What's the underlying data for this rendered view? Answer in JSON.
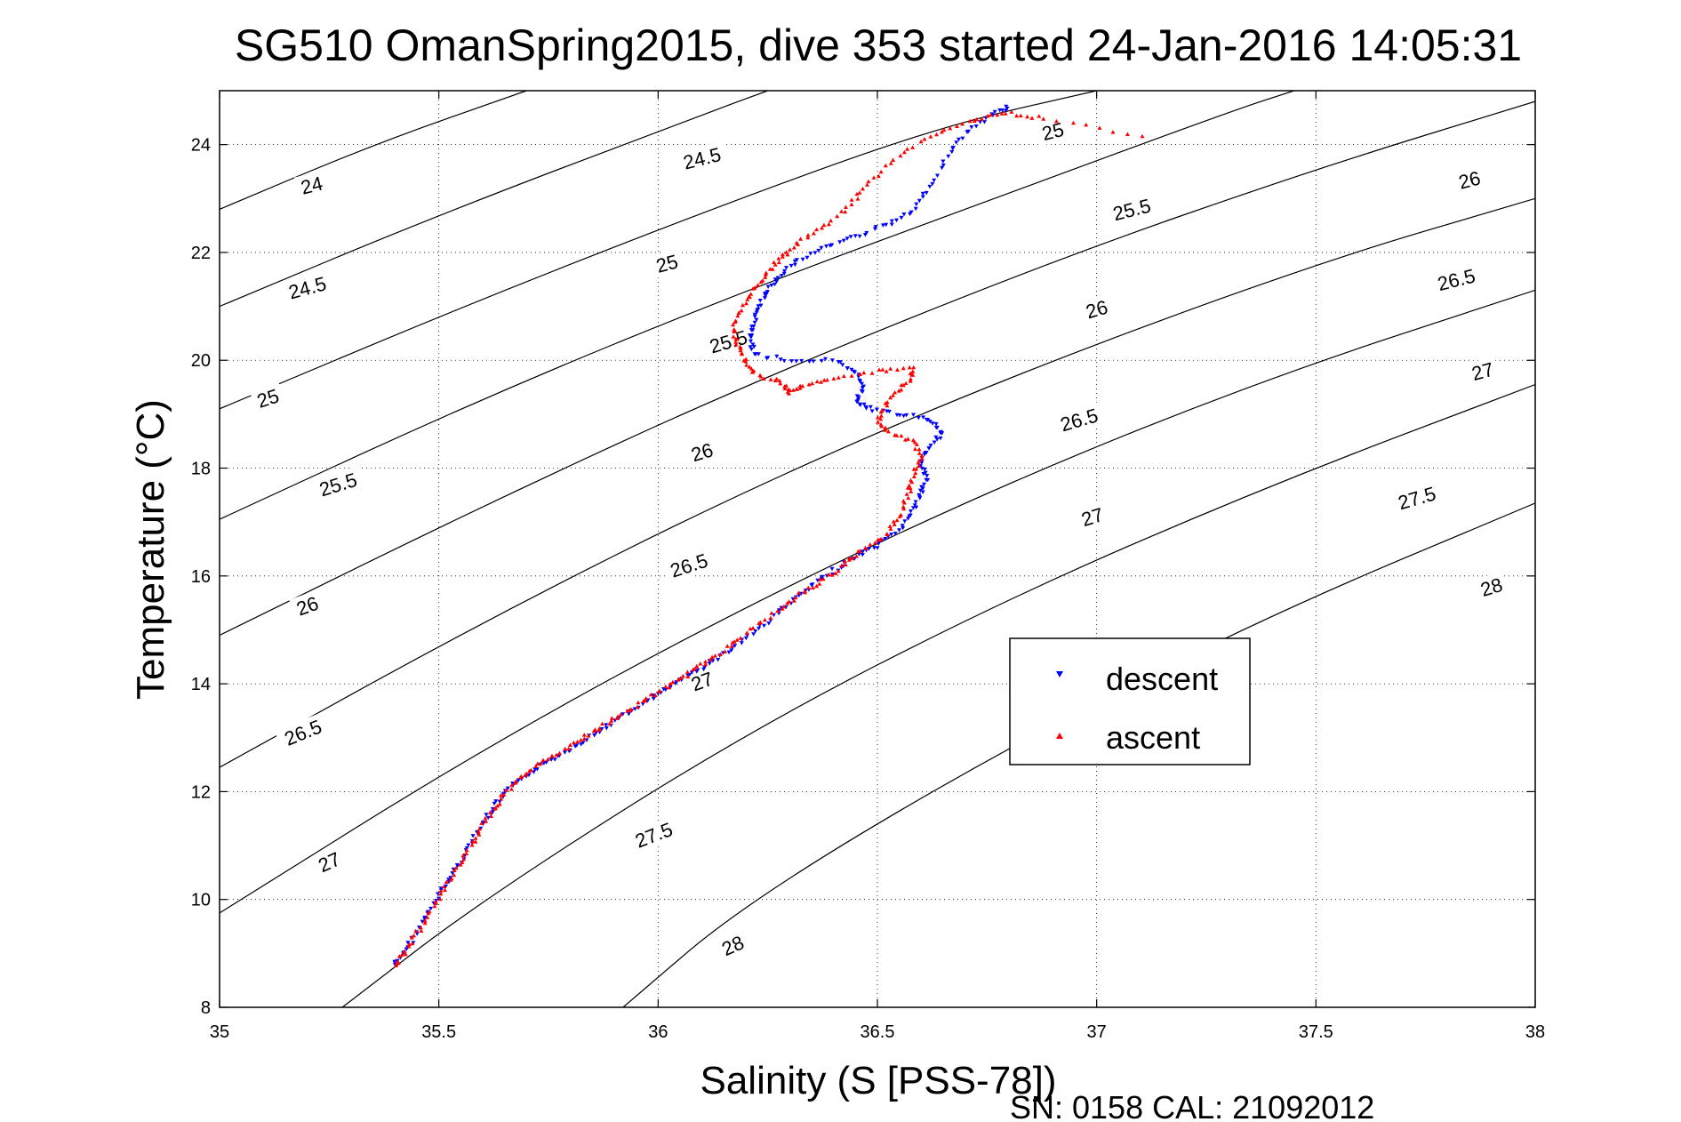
{
  "title": "SG510 OmanSpring2015, dive 353 started 24-Jan-2016 14:05:31",
  "footer": "SN: 0158  CAL: 21092012",
  "chart_data": {
    "type": "scatter",
    "title": "SG510 OmanSpring2015, dive 353 started 24-Jan-2016 14:05:31",
    "xlabel": "Salinity (S [PSS-78])",
    "ylabel": "Temperature (°C)",
    "xlim": [
      35,
      38
    ],
    "ylim": [
      8,
      25
    ],
    "xticks": [
      "35",
      "35.5",
      "36",
      "36.5",
      "37",
      "37.5",
      "38"
    ],
    "yticks": [
      "8",
      "10",
      "12",
      "14",
      "16",
      "18",
      "20",
      "22",
      "24"
    ],
    "grid": true,
    "legend_position": "right-center",
    "colors": {
      "descent": "#0000ff",
      "ascent": "#ff0000",
      "contour": "#000000"
    },
    "series": [
      {
        "name": "descent",
        "marker": "triangle-down",
        "color": "#0000ff",
        "points": [
          [
            35.4,
            8.8
          ],
          [
            35.42,
            9.0
          ],
          [
            35.45,
            9.4
          ],
          [
            35.48,
            9.8
          ],
          [
            35.51,
            10.2
          ],
          [
            35.54,
            10.6
          ],
          [
            35.57,
            11.0
          ],
          [
            35.6,
            11.4
          ],
          [
            35.63,
            11.75
          ],
          [
            35.66,
            12.05
          ],
          [
            35.7,
            12.3
          ],
          [
            35.75,
            12.55
          ],
          [
            35.8,
            12.8
          ],
          [
            35.85,
            13.05
          ],
          [
            35.9,
            13.3
          ],
          [
            35.95,
            13.55
          ],
          [
            36.0,
            13.8
          ],
          [
            36.05,
            14.05
          ],
          [
            36.1,
            14.3
          ],
          [
            36.15,
            14.55
          ],
          [
            36.2,
            14.85
          ],
          [
            36.25,
            15.15
          ],
          [
            36.3,
            15.5
          ],
          [
            36.35,
            15.8
          ],
          [
            36.4,
            16.1
          ],
          [
            36.45,
            16.35
          ],
          [
            36.5,
            16.55
          ],
          [
            36.55,
            16.85
          ],
          [
            36.58,
            17.2
          ],
          [
            36.6,
            17.5
          ],
          [
            36.61,
            17.8
          ],
          [
            36.6,
            18.1
          ],
          [
            36.62,
            18.4
          ],
          [
            36.65,
            18.65
          ],
          [
            36.62,
            18.9
          ],
          [
            36.55,
            19.0
          ],
          [
            36.48,
            19.1
          ],
          [
            36.45,
            19.25
          ],
          [
            36.47,
            19.5
          ],
          [
            36.45,
            19.8
          ],
          [
            36.4,
            20.0
          ],
          [
            36.3,
            20.0
          ],
          [
            36.22,
            20.1
          ],
          [
            36.21,
            20.4
          ],
          [
            36.22,
            20.7
          ],
          [
            36.23,
            21.0
          ],
          [
            36.25,
            21.3
          ],
          [
            36.28,
            21.6
          ],
          [
            36.32,
            21.85
          ],
          [
            36.38,
            22.1
          ],
          [
            36.45,
            22.3
          ],
          [
            36.52,
            22.5
          ],
          [
            36.58,
            22.75
          ],
          [
            36.62,
            23.2
          ],
          [
            36.66,
            23.8
          ],
          [
            36.7,
            24.2
          ],
          [
            36.76,
            24.55
          ],
          [
            36.8,
            24.7
          ]
        ]
      },
      {
        "name": "ascent",
        "marker": "triangle-up",
        "color": "#ff0000",
        "points": [
          [
            35.4,
            8.78
          ],
          [
            35.43,
            9.1
          ],
          [
            35.46,
            9.5
          ],
          [
            35.49,
            9.9
          ],
          [
            35.52,
            10.3
          ],
          [
            35.55,
            10.7
          ],
          [
            35.58,
            11.1
          ],
          [
            35.61,
            11.5
          ],
          [
            35.64,
            11.85
          ],
          [
            35.68,
            12.2
          ],
          [
            35.72,
            12.45
          ],
          [
            35.77,
            12.7
          ],
          [
            35.82,
            12.95
          ],
          [
            35.87,
            13.2
          ],
          [
            35.92,
            13.45
          ],
          [
            35.97,
            13.7
          ],
          [
            36.02,
            13.95
          ],
          [
            36.07,
            14.2
          ],
          [
            36.12,
            14.45
          ],
          [
            36.17,
            14.75
          ],
          [
            36.22,
            15.05
          ],
          [
            36.28,
            15.4
          ],
          [
            36.33,
            15.7
          ],
          [
            36.38,
            15.95
          ],
          [
            36.43,
            16.25
          ],
          [
            36.47,
            16.5
          ],
          [
            36.52,
            16.75
          ],
          [
            36.55,
            17.1
          ],
          [
            36.57,
            17.5
          ],
          [
            36.58,
            17.85
          ],
          [
            36.6,
            18.2
          ],
          [
            36.58,
            18.5
          ],
          [
            36.52,
            18.7
          ],
          [
            36.5,
            18.95
          ],
          [
            36.53,
            19.3
          ],
          [
            36.57,
            19.6
          ],
          [
            36.58,
            19.85
          ],
          [
            36.5,
            19.8
          ],
          [
            36.4,
            19.65
          ],
          [
            36.33,
            19.55
          ],
          [
            36.3,
            19.4
          ],
          [
            36.28,
            19.6
          ],
          [
            36.22,
            19.75
          ],
          [
            36.2,
            20.0
          ],
          [
            36.18,
            20.3
          ],
          [
            36.17,
            20.6
          ],
          [
            36.19,
            20.95
          ],
          [
            36.22,
            21.3
          ],
          [
            36.25,
            21.65
          ],
          [
            36.28,
            21.9
          ],
          [
            36.32,
            22.2
          ],
          [
            36.38,
            22.5
          ],
          [
            36.44,
            22.9
          ],
          [
            36.48,
            23.3
          ],
          [
            36.55,
            23.8
          ],
          [
            36.63,
            24.2
          ],
          [
            36.72,
            24.45
          ],
          [
            36.79,
            24.6
          ],
          [
            36.88,
            24.48
          ],
          [
            37.1,
            24.15
          ]
        ]
      }
    ],
    "contours": [
      {
        "label": "24",
        "points": [
          [
            35.0,
            22.8
          ],
          [
            35.35,
            24.0
          ],
          [
            35.7,
            25.0
          ]
        ]
      },
      {
        "label": "24.5",
        "points": [
          [
            35.0,
            21.0
          ],
          [
            35.5,
            22.7
          ],
          [
            36.1,
            24.55
          ],
          [
            36.25,
            25.0
          ]
        ]
      },
      {
        "label": "25",
        "points": [
          [
            35.0,
            19.1
          ],
          [
            35.6,
            21.15
          ],
          [
            36.2,
            23.05
          ],
          [
            36.65,
            24.35
          ],
          [
            37.0,
            25.0
          ]
        ]
      },
      {
        "label": "25.5",
        "points": [
          [
            35.0,
            17.05
          ],
          [
            35.6,
            19.3
          ],
          [
            36.2,
            21.3
          ],
          [
            36.8,
            23.1
          ],
          [
            37.3,
            24.6
          ],
          [
            37.45,
            25.0
          ]
        ]
      },
      {
        "label": "26",
        "points": [
          [
            35.0,
            14.9
          ],
          [
            35.6,
            17.3
          ],
          [
            36.2,
            19.55
          ],
          [
            36.9,
            21.85
          ],
          [
            37.5,
            23.55
          ],
          [
            38.0,
            24.8
          ]
        ]
      },
      {
        "label": "26.5",
        "points": [
          [
            35.0,
            12.45
          ],
          [
            35.6,
            15.15
          ],
          [
            36.2,
            17.6
          ],
          [
            36.8,
            19.7
          ],
          [
            37.5,
            21.8
          ],
          [
            38.0,
            23.0
          ]
        ]
      },
      {
        "label": "27",
        "points": [
          [
            35.0,
            9.75
          ],
          [
            35.6,
            12.8
          ],
          [
            36.2,
            15.45
          ],
          [
            36.8,
            17.75
          ],
          [
            37.4,
            19.7
          ],
          [
            38.0,
            21.3
          ]
        ]
      },
      {
        "label": "27.5",
        "points": [
          [
            35.28,
            8.0
          ],
          [
            35.6,
            10.0
          ],
          [
            36.2,
            13.1
          ],
          [
            36.8,
            15.6
          ],
          [
            37.4,
            17.7
          ],
          [
            38.0,
            19.55
          ]
        ]
      },
      {
        "label": "28",
        "points": [
          [
            35.92,
            8.0
          ],
          [
            36.2,
            9.95
          ],
          [
            36.8,
            12.85
          ],
          [
            37.4,
            15.3
          ],
          [
            38.0,
            17.35
          ]
        ]
      }
    ],
    "contour_labels": [
      {
        "text": "24",
        "s": 35.21,
        "t": 23.25,
        "angle": -14
      },
      {
        "text": "24.5",
        "s": 36.1,
        "t": 23.75,
        "angle": -14
      },
      {
        "text": "24.5",
        "s": 35.2,
        "t": 21.35,
        "angle": -15
      },
      {
        "text": "25",
        "s": 36.9,
        "t": 24.25,
        "angle": -14
      },
      {
        "text": "25",
        "s": 36.02,
        "t": 21.8,
        "angle": -15
      },
      {
        "text": "25",
        "s": 35.11,
        "t": 19.3,
        "angle": -18
      },
      {
        "text": "25.5",
        "s": 37.08,
        "t": 22.8,
        "angle": -14
      },
      {
        "text": "25.5",
        "s": 36.16,
        "t": 20.35,
        "angle": -16
      },
      {
        "text": "25.5",
        "s": 35.27,
        "t": 17.7,
        "angle": -17
      },
      {
        "text": "26",
        "s": 37.85,
        "t": 23.35,
        "angle": -14
      },
      {
        "text": "26",
        "s": 37.0,
        "t": 20.95,
        "angle": -16
      },
      {
        "text": "26",
        "s": 36.1,
        "t": 18.3,
        "angle": -17
      },
      {
        "text": "26",
        "s": 35.2,
        "t": 15.45,
        "angle": -20
      },
      {
        "text": "26.5",
        "s": 37.82,
        "t": 21.5,
        "angle": -14
      },
      {
        "text": "26.5",
        "s": 36.96,
        "t": 18.9,
        "angle": -16
      },
      {
        "text": "26.5",
        "s": 36.07,
        "t": 16.2,
        "angle": -18
      },
      {
        "text": "26.5",
        "s": 35.19,
        "t": 13.1,
        "angle": -22
      },
      {
        "text": "27",
        "s": 37.88,
        "t": 19.8,
        "angle": -15
      },
      {
        "text": "27",
        "s": 36.99,
        "t": 17.1,
        "angle": -17
      },
      {
        "text": "27",
        "s": 36.1,
        "t": 14.05,
        "angle": -20
      },
      {
        "text": "27",
        "s": 35.25,
        "t": 10.7,
        "angle": -24
      },
      {
        "text": "27.5",
        "s": 37.73,
        "t": 17.45,
        "angle": -16
      },
      {
        "text": "27.5",
        "s": 35.99,
        "t": 11.2,
        "angle": -21
      },
      {
        "text": "28",
        "s": 37.9,
        "t": 15.8,
        "angle": -17
      },
      {
        "text": "28",
        "s": 36.17,
        "t": 9.15,
        "angle": -24
      }
    ]
  }
}
